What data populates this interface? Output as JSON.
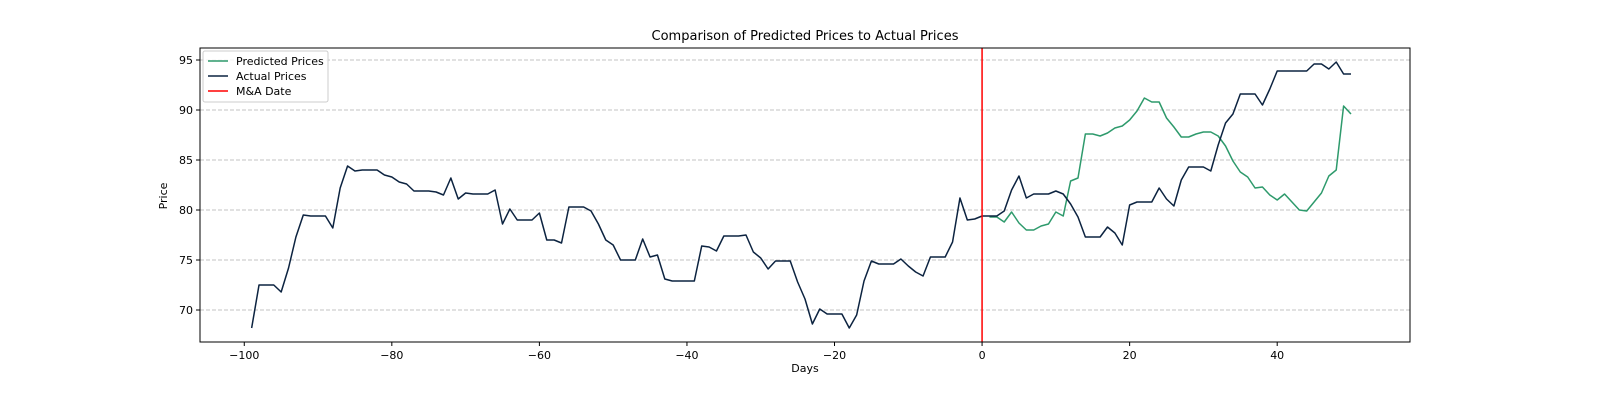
{
  "chart_data": {
    "type": "line",
    "title": "Comparison of Predicted Prices to Actual Prices",
    "xlabel": "Days",
    "ylabel": "Price",
    "xlim": [
      -106,
      58
    ],
    "ylim": [
      66.8,
      96.2
    ],
    "xticks": [
      -100,
      -80,
      -60,
      -40,
      -20,
      0,
      20,
      40
    ],
    "xtick_labels": [
      "−100",
      "−80",
      "−60",
      "−40",
      "−20",
      "0",
      "20",
      "40"
    ],
    "yticks": [
      70,
      75,
      80,
      85,
      90,
      95
    ],
    "ytick_labels": [
      "70",
      "75",
      "80",
      "85",
      "90",
      "95"
    ],
    "grid": "horizontal dashed",
    "legend_position": "upper-left",
    "colors": {
      "predicted": "#2e9a6c",
      "actual": "#0c2340",
      "ma_date": "#ff0000",
      "grid": "#b0b0b0"
    },
    "vline": {
      "name": "M&A Date",
      "x": 0
    },
    "series": [
      {
        "name": "Predicted Prices",
        "x": [
          1,
          2,
          3,
          4,
          5,
          6,
          7,
          8,
          9,
          10,
          11,
          12,
          13,
          14,
          15,
          16,
          17,
          18,
          19,
          20,
          21,
          22,
          23,
          24,
          25,
          26,
          27,
          28,
          29,
          30,
          31,
          32,
          33,
          34,
          35,
          36,
          37,
          38,
          39,
          40,
          41,
          42,
          43,
          44,
          45,
          46,
          47,
          48,
          49,
          50
        ],
        "values": [
          79.3,
          79.3,
          78.8,
          79.8,
          78.7,
          78.0,
          78.0,
          78.4,
          78.6,
          79.8,
          79.4,
          82.9,
          83.2,
          87.6,
          87.6,
          87.4,
          87.7,
          88.2,
          88.4,
          89.0,
          89.9,
          91.2,
          90.8,
          90.8,
          89.2,
          88.3,
          87.3,
          87.3,
          87.6,
          87.8,
          87.8,
          87.4,
          86.4,
          84.9,
          83.8,
          83.3,
          82.2,
          82.3,
          81.5,
          81.0,
          81.6,
          80.8,
          80.0,
          79.9,
          80.8,
          81.7,
          83.4,
          84.0,
          90.4,
          89.6
        ]
      },
      {
        "name": "Actual Prices",
        "x": [
          -99,
          -98,
          -97,
          -96,
          -95,
          -94,
          -93,
          -92,
          -91,
          -90,
          -89,
          -88,
          -87,
          -86,
          -85,
          -84,
          -83,
          -82,
          -81,
          -80,
          -79,
          -78,
          -77,
          -76,
          -75,
          -74,
          -73,
          -72,
          -71,
          -70,
          -69,
          -68,
          -67,
          -66,
          -65,
          -64,
          -63,
          -62,
          -61,
          -60,
          -59,
          -58,
          -57,
          -56,
          -55,
          -54,
          -53,
          -52,
          -51,
          -50,
          -49,
          -48,
          -47,
          -46,
          -45,
          -44,
          -43,
          -42,
          -41,
          -40,
          -39,
          -38,
          -37,
          -36,
          -35,
          -34,
          -33,
          -32,
          -31,
          -30,
          -29,
          -28,
          -27,
          -26,
          -25,
          -24,
          -23,
          -22,
          -21,
          -20,
          -19,
          -18,
          -17,
          -16,
          -15,
          -14,
          -13,
          -12,
          -11,
          -10,
          -9,
          -8,
          -7,
          -6,
          -5,
          -4,
          -3,
          -2,
          -1,
          0,
          1,
          2,
          3,
          4,
          5,
          6,
          7,
          8,
          9,
          10,
          11,
          12,
          13,
          14,
          15,
          16,
          17,
          18,
          19,
          20,
          21,
          22,
          23,
          24,
          25,
          26,
          27,
          28,
          29,
          30,
          31,
          32,
          33,
          34,
          35,
          36,
          37,
          38,
          39,
          40,
          41,
          42,
          43,
          44,
          45,
          46,
          47,
          48,
          49,
          50
        ],
        "values": [
          68.2,
          72.5,
          72.5,
          72.5,
          71.8,
          74.2,
          77.3,
          79.5,
          79.4,
          79.4,
          79.4,
          78.2,
          82.2,
          84.4,
          83.9,
          84.0,
          84.0,
          84.0,
          83.5,
          83.3,
          82.8,
          82.6,
          81.9,
          81.9,
          81.9,
          81.8,
          81.5,
          83.2,
          81.1,
          81.7,
          81.6,
          81.6,
          81.6,
          82.0,
          78.6,
          80.1,
          79.0,
          79.0,
          79.0,
          79.7,
          77.0,
          77.0,
          76.7,
          80.3,
          80.3,
          80.3,
          79.9,
          78.6,
          77.0,
          76.5,
          75.0,
          75.0,
          75.0,
          77.1,
          75.3,
          75.5,
          73.1,
          72.9,
          72.9,
          72.9,
          72.9,
          76.4,
          76.3,
          75.9,
          77.4,
          77.4,
          77.4,
          77.5,
          75.8,
          75.2,
          74.1,
          74.9,
          74.9,
          74.9,
          72.8,
          71.1,
          68.6,
          70.1,
          69.6,
          69.6,
          69.6,
          68.2,
          69.5,
          72.9,
          74.9,
          74.6,
          74.6,
          74.6,
          75.1,
          74.4,
          73.8,
          73.4,
          75.3,
          75.3,
          75.3,
          76.8,
          81.2,
          79.0,
          79.1,
          79.4,
          79.4,
          79.4,
          79.9,
          82.0,
          83.4,
          81.2,
          81.6,
          81.6,
          81.6,
          81.9,
          81.6,
          80.6,
          79.3,
          77.3,
          77.3,
          77.3,
          78.3,
          77.7,
          76.5,
          80.5,
          80.8,
          80.8,
          80.8,
          82.2,
          81.1,
          80.4,
          83.0,
          84.3,
          84.3,
          84.3,
          83.9,
          86.5,
          88.7,
          89.6,
          91.6,
          91.6,
          91.6,
          90.5,
          92.1,
          93.9,
          93.9,
          93.9,
          93.9,
          93.9,
          94.6,
          94.6,
          94.1,
          94.8,
          93.6,
          93.6
        ]
      }
    ]
  }
}
